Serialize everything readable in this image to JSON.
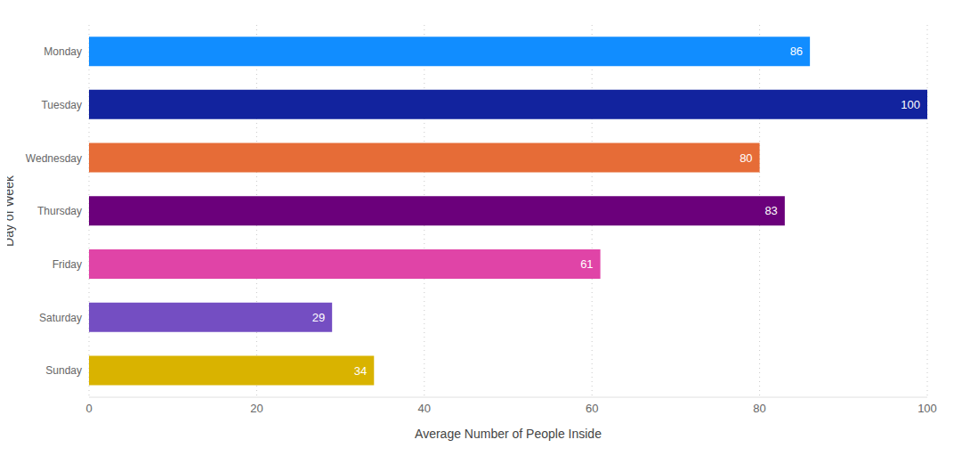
{
  "chart_data": {
    "type": "bar",
    "orientation": "horizontal",
    "x_label": "Average Number of People Inside",
    "y_label": "Day of Week",
    "categories": [
      "Monday",
      "Tuesday",
      "Wednesday",
      "Thursday",
      "Friday",
      "Saturday",
      "Sunday"
    ],
    "values": [
      86,
      100,
      80,
      83,
      61,
      29,
      34
    ],
    "colors": [
      "#118DFF",
      "#12239E",
      "#E66C37",
      "#6B007B",
      "#E044A7",
      "#744EC2",
      "#D9B300"
    ],
    "xlim": [
      0,
      100
    ],
    "xticks": [
      0,
      20,
      40,
      60,
      80,
      100
    ],
    "grid": true,
    "data_labels": true
  }
}
